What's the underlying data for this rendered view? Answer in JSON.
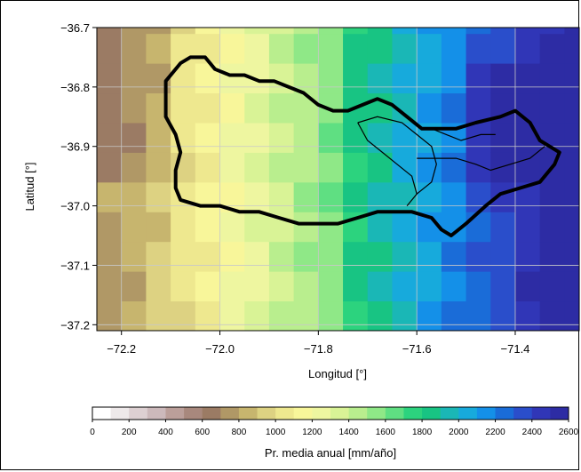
{
  "map": {
    "x_axis": {
      "label": "Longitud [°]",
      "ticks": [
        {
          "value": -72.2,
          "label": "−72.2"
        },
        {
          "value": -72.0,
          "label": "−72.0"
        },
        {
          "value": -71.8,
          "label": "−71.8"
        },
        {
          "value": -71.6,
          "label": "−71.6"
        },
        {
          "value": -71.4,
          "label": "−71.4"
        }
      ],
      "range": [
        -72.25,
        -71.27
      ]
    },
    "y_axis": {
      "label": "Latitud [°]",
      "ticks": [
        {
          "value": -36.7,
          "label": "−36.7"
        },
        {
          "value": -36.8,
          "label": "−36.8"
        },
        {
          "value": -36.9,
          "label": "−36.9"
        },
        {
          "value": -37.0,
          "label": "−37.0"
        },
        {
          "value": -37.1,
          "label": "−37.1"
        },
        {
          "value": -37.2,
          "label": "−37.2"
        }
      ],
      "range": [
        -37.21,
        -36.7
      ]
    },
    "grid": true,
    "grid_cell_size_deg": 0.05,
    "basin_outline": [
      [
        -72.08,
        -36.76
      ],
      [
        -72.06,
        -36.75
      ],
      [
        -72.03,
        -36.75
      ],
      [
        -72.01,
        -36.77
      ],
      [
        -71.98,
        -36.78
      ],
      [
        -71.95,
        -36.78
      ],
      [
        -71.92,
        -36.79
      ],
      [
        -71.89,
        -36.79
      ],
      [
        -71.86,
        -36.8
      ],
      [
        -71.83,
        -36.81
      ],
      [
        -71.8,
        -36.83
      ],
      [
        -71.77,
        -36.84
      ],
      [
        -71.74,
        -36.84
      ],
      [
        -71.71,
        -36.83
      ],
      [
        -71.68,
        -36.82
      ],
      [
        -71.65,
        -36.83
      ],
      [
        -71.62,
        -36.85
      ],
      [
        -71.59,
        -36.87
      ],
      [
        -71.56,
        -36.87
      ],
      [
        -71.52,
        -36.87
      ],
      [
        -71.48,
        -36.86
      ],
      [
        -71.43,
        -36.85
      ],
      [
        -71.4,
        -36.84
      ],
      [
        -71.37,
        -36.86
      ],
      [
        -71.35,
        -36.89
      ],
      [
        -71.31,
        -36.91
      ],
      [
        -71.32,
        -36.93
      ],
      [
        -71.35,
        -36.96
      ],
      [
        -71.39,
        -36.97
      ],
      [
        -71.43,
        -36.98
      ],
      [
        -71.46,
        -37.0
      ],
      [
        -71.5,
        -37.03
      ],
      [
        -71.53,
        -37.05
      ],
      [
        -71.55,
        -37.04
      ],
      [
        -71.57,
        -37.02
      ],
      [
        -71.61,
        -37.01
      ],
      [
        -71.64,
        -37.01
      ],
      [
        -71.68,
        -37.01
      ],
      [
        -71.72,
        -37.02
      ],
      [
        -71.76,
        -37.03
      ],
      [
        -71.8,
        -37.03
      ],
      [
        -71.84,
        -37.03
      ],
      [
        -71.88,
        -37.02
      ],
      [
        -71.92,
        -37.01
      ],
      [
        -71.96,
        -37.01
      ],
      [
        -72.0,
        -37.0
      ],
      [
        -72.04,
        -37.0
      ],
      [
        -72.08,
        -36.99
      ],
      [
        -72.09,
        -36.97
      ],
      [
        -72.09,
        -36.94
      ],
      [
        -72.08,
        -36.91
      ],
      [
        -72.09,
        -36.88
      ],
      [
        -72.11,
        -36.85
      ],
      [
        -72.11,
        -36.82
      ],
      [
        -72.11,
        -36.79
      ],
      [
        -72.08,
        -36.76
      ]
    ],
    "sub_basin_outlines": [
      [
        [
          -71.72,
          -36.86
        ],
        [
          -71.68,
          -36.85
        ],
        [
          -71.63,
          -36.86
        ],
        [
          -71.6,
          -36.88
        ],
        [
          -71.57,
          -36.9
        ],
        [
          -71.56,
          -36.93
        ],
        [
          -71.57,
          -36.96
        ],
        [
          -71.6,
          -36.98
        ],
        [
          -71.62,
          -37.0
        ]
      ],
      [
        [
          -71.72,
          -36.86
        ],
        [
          -71.7,
          -36.89
        ],
        [
          -71.67,
          -36.91
        ],
        [
          -71.64,
          -36.93
        ],
        [
          -71.61,
          -36.95
        ],
        [
          -71.6,
          -36.98
        ]
      ],
      [
        [
          -71.6,
          -36.92
        ],
        [
          -71.56,
          -36.92
        ],
        [
          -71.52,
          -36.92
        ],
        [
          -71.48,
          -36.93
        ],
        [
          -71.45,
          -36.94
        ],
        [
          -71.41,
          -36.93
        ],
        [
          -71.37,
          -36.92
        ],
        [
          -71.34,
          -36.9
        ]
      ],
      [
        [
          -71.57,
          -36.87
        ],
        [
          -71.54,
          -36.88
        ],
        [
          -71.51,
          -36.89
        ],
        [
          -71.47,
          -36.88
        ],
        [
          -71.44,
          -36.88
        ]
      ]
    ]
  },
  "colorbar": {
    "label": "Pr. media anual [mm/año]",
    "min": 0,
    "max": 2600,
    "tick_labels": [
      "0",
      "200",
      "400",
      "600",
      "800",
      "1000",
      "1200",
      "1400",
      "1600",
      "1800",
      "2000",
      "2200",
      "2400",
      "2600"
    ],
    "colors": [
      "#ffffff",
      "#eee9ea",
      "#ddd0d2",
      "#ccb9bb",
      "#bb9f9a",
      "#a8887d",
      "#9b7b64",
      "#b09866",
      "#c7b56e",
      "#ddd282",
      "#eee88f",
      "#f8f69a",
      "#eef6a0",
      "#d9f396",
      "#b9ee8e",
      "#8fe887",
      "#5fdf82",
      "#2cd37e",
      "#18c483",
      "#1ab7b6",
      "#17aadc",
      "#1490e8",
      "#1a6cd8",
      "#2a4ecb",
      "#3036b7",
      "#2d2ca4"
    ]
  }
}
